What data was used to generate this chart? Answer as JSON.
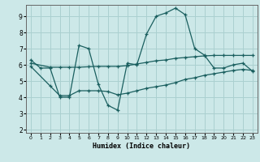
{
  "xlabel": "Humidex (Indice chaleur)",
  "x_ticks": [
    0,
    1,
    2,
    3,
    4,
    5,
    6,
    7,
    8,
    9,
    10,
    11,
    12,
    13,
    14,
    15,
    16,
    17,
    18,
    19,
    20,
    21,
    22,
    23
  ],
  "xlim": [
    -0.5,
    23.5
  ],
  "ylim": [
    1.8,
    9.7
  ],
  "yticks": [
    2,
    3,
    4,
    5,
    6,
    7,
    8,
    9
  ],
  "bg_color": "#cce8e8",
  "grid_color": "#aad0d0",
  "line_color": "#1a5f5f",
  "curve1_x": [
    0,
    1,
    2,
    3,
    4,
    5,
    6,
    7,
    8,
    9,
    10,
    11,
    12,
    13,
    14,
    15,
    16,
    17,
    18,
    19,
    20,
    21,
    22,
    23
  ],
  "curve1_y": [
    6.3,
    5.8,
    5.8,
    4.0,
    4.0,
    7.2,
    7.0,
    4.8,
    3.5,
    3.2,
    6.1,
    6.0,
    7.9,
    9.0,
    9.2,
    9.5,
    9.1,
    7.0,
    6.6,
    5.8,
    5.8,
    6.0,
    6.1,
    5.6
  ],
  "curve2_x": [
    0,
    2,
    3,
    4,
    5,
    6,
    7,
    8,
    9,
    10,
    11,
    12,
    13,
    14,
    15,
    16,
    17,
    18,
    19,
    20,
    21,
    22,
    23
  ],
  "curve2_y": [
    6.1,
    5.85,
    5.85,
    5.85,
    5.85,
    5.88,
    5.9,
    5.9,
    5.9,
    5.95,
    6.05,
    6.15,
    6.25,
    6.3,
    6.4,
    6.45,
    6.5,
    6.55,
    6.58,
    6.58,
    6.58,
    6.58,
    6.58
  ],
  "curve3_x": [
    0,
    2,
    3,
    4,
    5,
    6,
    7,
    8,
    9,
    10,
    11,
    12,
    13,
    14,
    15,
    16,
    17,
    18,
    19,
    20,
    21,
    22,
    23
  ],
  "curve3_y": [
    5.9,
    4.7,
    4.1,
    4.1,
    4.4,
    4.4,
    4.4,
    4.35,
    4.15,
    4.25,
    4.4,
    4.55,
    4.65,
    4.75,
    4.9,
    5.1,
    5.2,
    5.35,
    5.45,
    5.55,
    5.65,
    5.72,
    5.65
  ]
}
